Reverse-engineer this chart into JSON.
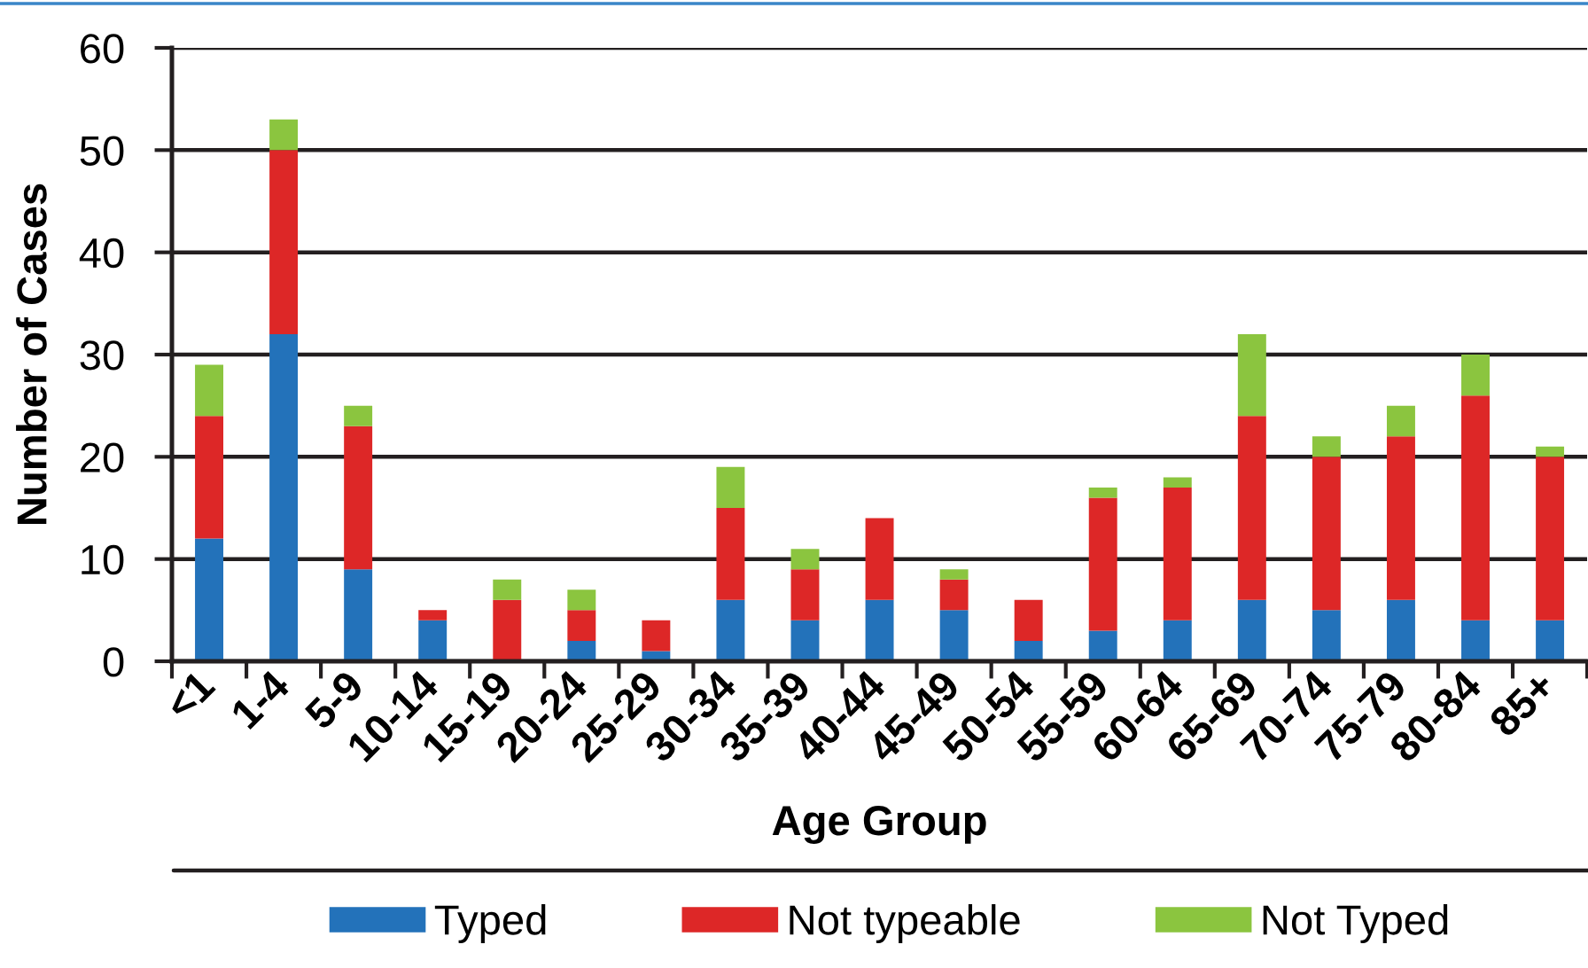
{
  "chart_data": {
    "type": "bar",
    "stacked": true,
    "xlabel": "Age Group",
    "ylabel": "Number of Cases",
    "categories": [
      "<1",
      "1-4",
      "5-9",
      "10-14",
      "15-19",
      "20-24",
      "25-29",
      "30-34",
      "35-39",
      "40-44",
      "45-49",
      "50-54",
      "55-59",
      "60-64",
      "65-69",
      "70-74",
      "75-79",
      "80-84",
      "85+"
    ],
    "series": [
      {
        "name": "Typed",
        "color": "#2372ba",
        "values": [
          12,
          32,
          9,
          4,
          0,
          2,
          1,
          6,
          4,
          6,
          5,
          2,
          3,
          4,
          6,
          5,
          6,
          4,
          4
        ]
      },
      {
        "name": "Not typeable",
        "color": "#dd2727",
        "values": [
          12,
          18,
          14,
          1,
          6,
          3,
          3,
          9,
          5,
          8,
          3,
          4,
          13,
          13,
          18,
          15,
          16,
          22,
          16
        ]
      },
      {
        "name": "Not Typed",
        "color": "#8bc53f",
        "values": [
          5,
          3,
          2,
          0,
          2,
          2,
          0,
          4,
          2,
          0,
          1,
          0,
          1,
          1,
          8,
          2,
          3,
          4,
          1
        ]
      }
    ],
    "ylim": [
      0,
      60
    ],
    "yticks": [
      0,
      10,
      20,
      30,
      40,
      50,
      60
    ],
    "grid": "y",
    "legend": "bottom"
  }
}
